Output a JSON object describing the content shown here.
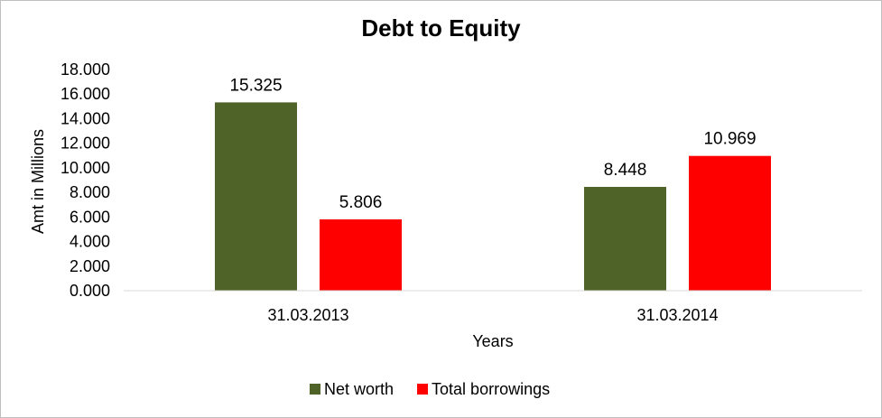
{
  "chart_data": {
    "type": "bar",
    "title": "Debt to Equity",
    "xlabel": "Years",
    "ylabel": "Amt in Millions",
    "categories": [
      "31.03.2013",
      "31.03.2014"
    ],
    "series": [
      {
        "name": "Net worth",
        "values": [
          15.325,
          8.448
        ],
        "labels": [
          "15.325",
          "8.448"
        ],
        "color": "#4f6228"
      },
      {
        "name": "Total borrowings",
        "values": [
          5.806,
          10.969
        ],
        "labels": [
          "5.806",
          "10.969"
        ],
        "color": "#ff0000"
      }
    ],
    "ylim": [
      0,
      18
    ],
    "yticks": [
      "0.000",
      "2.000",
      "4.000",
      "6.000",
      "8.000",
      "10.000",
      "12.000",
      "14.000",
      "16.000",
      "18.000"
    ],
    "grid": false,
    "legend": "bottom"
  }
}
